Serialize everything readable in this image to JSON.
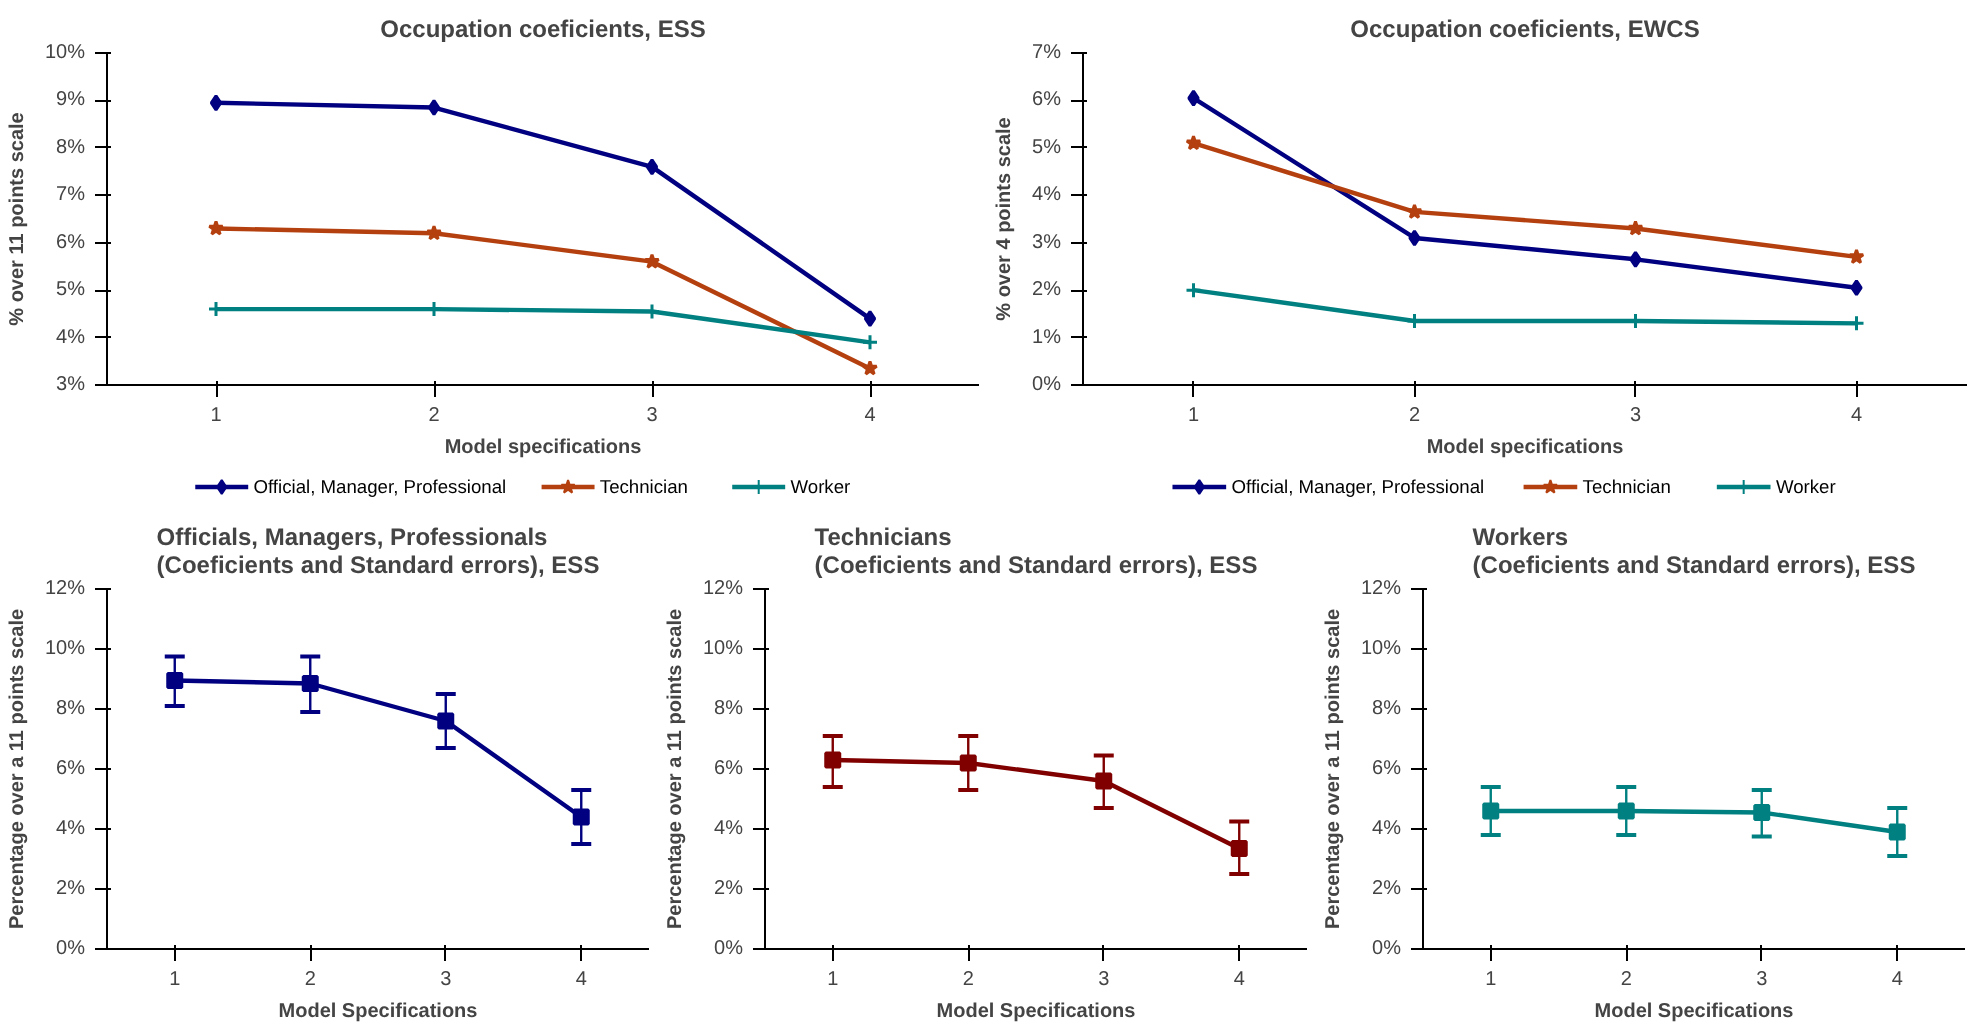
{
  "chart_data": [
    {
      "type": "line",
      "title": "Occupation coeficients, ESS",
      "xlabel": "Model specifications",
      "ylabel": "% over 11 points scale",
      "categories": [
        "1",
        "2",
        "3",
        "4"
      ],
      "ylim": [
        3,
        10
      ],
      "yticks": [
        {
          "value": 3,
          "label": "3%"
        },
        {
          "value": 4,
          "label": "4%"
        },
        {
          "value": 5,
          "label": "5%"
        },
        {
          "value": 6,
          "label": "6%"
        },
        {
          "value": 7,
          "label": "7%"
        },
        {
          "value": 8,
          "label": "8%"
        },
        {
          "value": 9,
          "label": "9%"
        },
        {
          "value": 10,
          "label": "10%"
        }
      ],
      "legend": "bottom",
      "series": [
        {
          "name": "Official, Manager, Professional",
          "color": "#000080",
          "marker": "diamond",
          "values": [
            8.95,
            8.85,
            7.6,
            4.4
          ]
        },
        {
          "name": "Technician",
          "color": "#b5400f",
          "marker": "star",
          "values": [
            6.3,
            6.2,
            5.6,
            3.35
          ]
        },
        {
          "name": "Worker",
          "color": "#008080",
          "marker": "cross",
          "values": [
            4.6,
            4.6,
            4.55,
            3.9
          ]
        }
      ]
    },
    {
      "type": "line",
      "title": "Occupation coeficients, EWCS",
      "xlabel": "Model specifications",
      "ylabel": "% over 4 points scale",
      "categories": [
        "1",
        "2",
        "3",
        "4"
      ],
      "ylim": [
        0,
        7
      ],
      "yticks": [
        {
          "value": 0,
          "label": "0%"
        },
        {
          "value": 1,
          "label": "1%"
        },
        {
          "value": 2,
          "label": "2%"
        },
        {
          "value": 3,
          "label": "3%"
        },
        {
          "value": 4,
          "label": "4%"
        },
        {
          "value": 5,
          "label": "5%"
        },
        {
          "value": 6,
          "label": "6%"
        },
        {
          "value": 7,
          "label": "7%"
        }
      ],
      "legend": "bottom",
      "series": [
        {
          "name": "Official, Manager, Professional",
          "color": "#000080",
          "marker": "diamond",
          "values": [
            6.05,
            3.1,
            2.65,
            2.05
          ]
        },
        {
          "name": "Technician",
          "color": "#b5400f",
          "marker": "star",
          "values": [
            5.1,
            3.65,
            3.3,
            2.7
          ]
        },
        {
          "name": "Worker",
          "color": "#008080",
          "marker": "cross",
          "values": [
            2.0,
            1.35,
            1.35,
            1.3
          ]
        }
      ]
    },
    {
      "type": "line",
      "title": "Officials, Managers, Professionals\n(Coeficients and Standard errors), ESS",
      "xlabel": "Model Specifications",
      "ylabel": "Percentage over a 11 points scale",
      "categories": [
        "1",
        "2",
        "3",
        "4"
      ],
      "ylim": [
        0,
        12
      ],
      "yticks": [
        {
          "value": 0,
          "label": "0%"
        },
        {
          "value": 2,
          "label": "2%"
        },
        {
          "value": 4,
          "label": "4%"
        },
        {
          "value": 6,
          "label": "6%"
        },
        {
          "value": 8,
          "label": "8%"
        },
        {
          "value": 10,
          "label": "10%"
        },
        {
          "value": 12,
          "label": "12%"
        }
      ],
      "marker": "square",
      "series": [
        {
          "color": "#000080",
          "values": [
            8.95,
            8.85,
            7.6,
            4.4
          ],
          "errors": [
            [
              8.1,
              9.75
            ],
            [
              7.9,
              9.75
            ],
            [
              6.7,
              8.5
            ],
            [
              3.5,
              5.3
            ]
          ]
        }
      ]
    },
    {
      "type": "line",
      "title": "Technicians\n(Coeficients and Standard errors), ESS",
      "xlabel": "Model Specifications",
      "ylabel": "Percentage over a 11 points scale",
      "categories": [
        "1",
        "2",
        "3",
        "4"
      ],
      "ylim": [
        0,
        12
      ],
      "yticks": [
        {
          "value": 0,
          "label": "0%"
        },
        {
          "value": 2,
          "label": "2%"
        },
        {
          "value": 4,
          "label": "4%"
        },
        {
          "value": 6,
          "label": "6%"
        },
        {
          "value": 8,
          "label": "8%"
        },
        {
          "value": 10,
          "label": "10%"
        },
        {
          "value": 12,
          "label": "12%"
        }
      ],
      "marker": "square",
      "series": [
        {
          "color": "#800000",
          "values": [
            6.3,
            6.2,
            5.6,
            3.35
          ],
          "errors": [
            [
              5.4,
              7.1
            ],
            [
              5.3,
              7.1
            ],
            [
              4.7,
              6.45
            ],
            [
              2.5,
              4.25
            ]
          ]
        }
      ]
    },
    {
      "type": "line",
      "title": "Workers\n(Coeficients and Standard errors), ESS",
      "xlabel": "Model Specifications",
      "ylabel": "Percentage over a 11 points scale",
      "categories": [
        "1",
        "2",
        "3",
        "4"
      ],
      "ylim": [
        0,
        12
      ],
      "yticks": [
        {
          "value": 0,
          "label": "0%"
        },
        {
          "value": 2,
          "label": "2%"
        },
        {
          "value": 4,
          "label": "4%"
        },
        {
          "value": 6,
          "label": "6%"
        },
        {
          "value": 8,
          "label": "8%"
        },
        {
          "value": 10,
          "label": "10%"
        },
        {
          "value": 12,
          "label": "12%"
        }
      ],
      "marker": "square",
      "series": [
        {
          "color": "#008080",
          "values": [
            4.6,
            4.6,
            4.55,
            3.9
          ],
          "errors": [
            [
              3.8,
              5.4
            ],
            [
              3.8,
              5.4
            ],
            [
              3.75,
              5.3
            ],
            [
              3.1,
              4.7
            ]
          ]
        }
      ]
    }
  ]
}
